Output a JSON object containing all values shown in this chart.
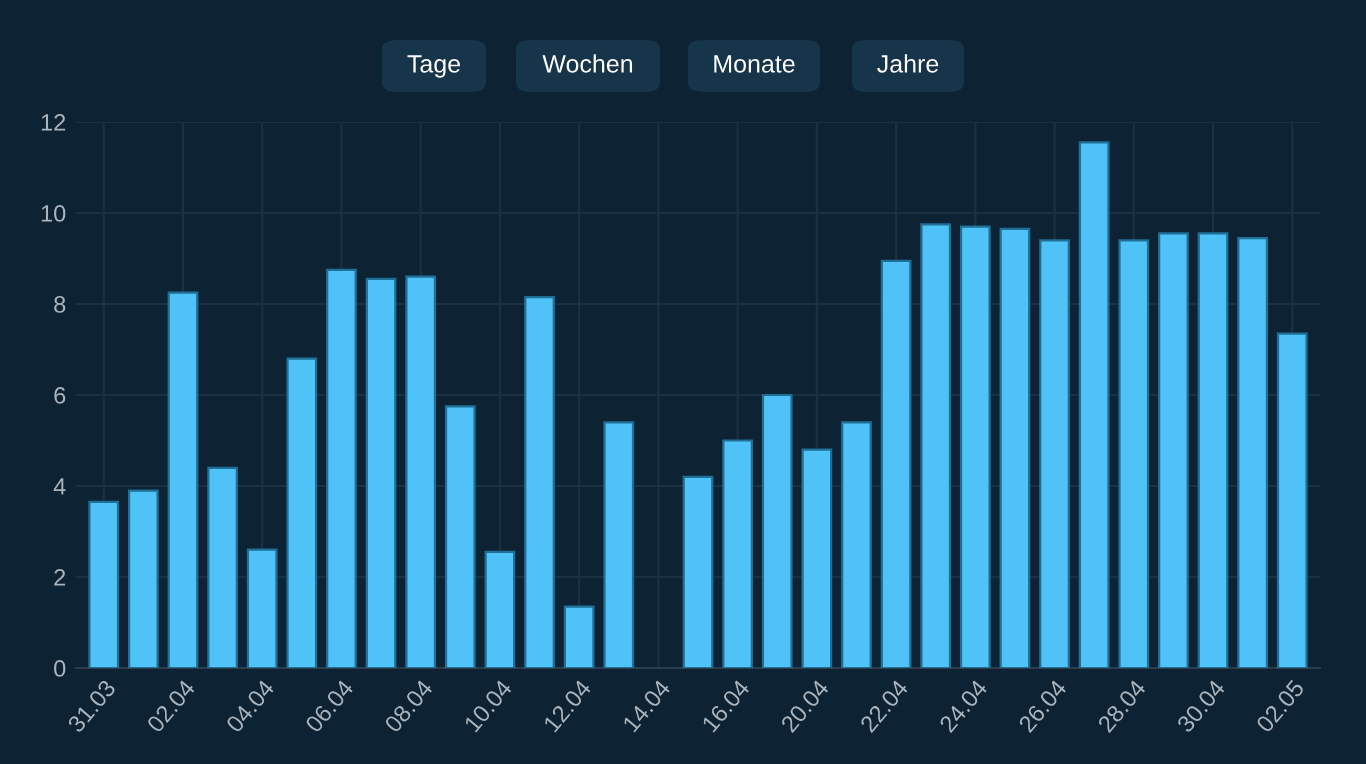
{
  "chart_data": {
    "type": "bar",
    "categories": [
      "31.03",
      null,
      "02.04",
      null,
      "04.04",
      null,
      "06.04",
      null,
      "08.04",
      null,
      "10.04",
      null,
      "12.04",
      null,
      "14.04",
      null,
      "16.04",
      null,
      "20.04",
      null,
      "22.04",
      null,
      "24.04",
      null,
      "26.04",
      null,
      "28.04",
      null,
      "30.04",
      null,
      "02.05"
    ],
    "values": [
      3.65,
      3.9,
      8.25,
      4.4,
      2.6,
      6.8,
      8.75,
      8.55,
      8.6,
      5.75,
      2.55,
      8.15,
      1.35,
      5.4,
      null,
      4.2,
      5.0,
      6.0,
      4.8,
      5.4,
      8.95,
      9.75,
      9.7,
      9.65,
      9.4,
      11.55,
      9.4,
      9.55,
      9.55,
      9.45,
      7.35
    ],
    "color": "#4fc3f7",
    "ylim": [
      0,
      12
    ],
    "yticks": [
      0,
      2,
      4,
      6,
      8,
      10,
      12
    ],
    "grid": true,
    "annotations": [
      "Tage",
      "Wochen",
      "Monate",
      "Jahre"
    ]
  }
}
